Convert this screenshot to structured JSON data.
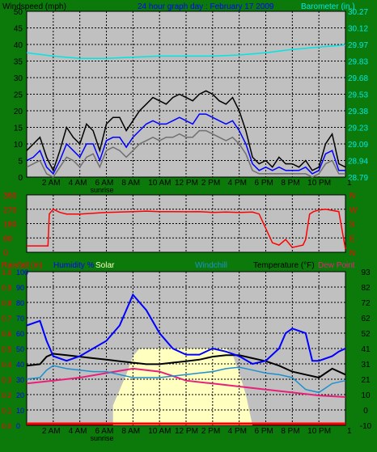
{
  "colors": {
    "background": "#0b7a0b",
    "plot": "#c0c0c0",
    "wind_gust": "#000000",
    "wind_avg": "#0000ff",
    "wind_low": "#707070",
    "barometer": "#00e5e5",
    "direction": "#ff0000",
    "rainfall": "#ff0000",
    "humidity": "#0000ff",
    "solar": "#ffffc0",
    "windchill": "#1e8fd0",
    "temperature": "#000000",
    "dewpoint": "#e8207a"
  },
  "chart_data": [
    {
      "type": "line",
      "title": "24 hour graph day : February 17 2009",
      "ylabel": "Windspeed (mph)",
      "y2label": "Barometer (in.)",
      "ylim": [
        0,
        50
      ],
      "yticks": [
        "0",
        "5",
        "10",
        "15",
        "20",
        "25",
        "30",
        "35",
        "40",
        "45",
        "50"
      ],
      "y2ticks": [
        "28.79",
        "28.94",
        "29.09",
        "29.23",
        "29.38",
        "29.53",
        "29.68",
        "29.83",
        "29.97",
        "30.12",
        "30.27"
      ],
      "xticks": [
        "2 AM",
        "4 AM",
        "6 AM",
        "8 AM",
        "10 AM",
        "12 PM",
        "2 PM",
        "4 PM",
        "6 PM",
        "8 PM",
        "10 PM",
        "1"
      ],
      "annotation": "sunrise",
      "grid": true,
      "series": [
        {
          "name": "gust",
          "x": [
            0,
            0.5,
            1,
            1.5,
            2,
            2.5,
            3,
            3.5,
            4,
            4.5,
            5,
            5.5,
            6,
            6.5,
            7,
            7.5,
            8,
            8.5,
            9,
            9.5,
            10,
            10.5,
            11,
            11.5,
            12,
            12.5,
            13,
            13.5,
            14,
            14.5,
            15,
            15.5,
            16,
            16.5,
            17,
            17.5,
            18,
            18.5,
            19,
            19.5,
            20,
            20.5,
            21,
            21.5,
            22,
            22.5,
            23,
            23.5,
            24
          ],
          "values": [
            8,
            10,
            12,
            6,
            2,
            8,
            15,
            12,
            10,
            16,
            14,
            8,
            16,
            18,
            18,
            14,
            17,
            20,
            22,
            24,
            23,
            22,
            24,
            25,
            24,
            23,
            25,
            26,
            25,
            23,
            22,
            24,
            20,
            14,
            6,
            4,
            5,
            3,
            6,
            4,
            4,
            3,
            5,
            2,
            3,
            10,
            13,
            4,
            3
          ]
        },
        {
          "name": "average",
          "x": [
            0,
            0.5,
            1,
            1.5,
            2,
            2.5,
            3,
            3.5,
            4,
            4.5,
            5,
            5.5,
            6,
            6.5,
            7,
            7.5,
            8,
            8.5,
            9,
            9.5,
            10,
            10.5,
            11,
            11.5,
            12,
            12.5,
            13,
            13.5,
            14,
            14.5,
            15,
            15.5,
            16,
            16.5,
            17,
            17.5,
            18,
            18.5,
            19,
            19.5,
            20,
            20.5,
            21,
            21.5,
            22,
            22.5,
            23,
            23.5,
            24
          ],
          "values": [
            5,
            6,
            8,
            3,
            1,
            5,
            10,
            8,
            6,
            10,
            10,
            5,
            11,
            12,
            12,
            9,
            12,
            14,
            16,
            17,
            16,
            16,
            17,
            18,
            17,
            16,
            19,
            19,
            18,
            17,
            16,
            17,
            14,
            10,
            4,
            2,
            3,
            2,
            3,
            2,
            2,
            2,
            3,
            1,
            2,
            7,
            8,
            2,
            2
          ]
        },
        {
          "name": "low",
          "x": [
            0,
            0.5,
            1,
            1.5,
            2,
            2.5,
            3,
            3.5,
            4,
            4.5,
            5,
            5.5,
            6,
            6.5,
            7,
            7.5,
            8,
            8.5,
            9,
            9.5,
            10,
            10.5,
            11,
            11.5,
            12,
            12.5,
            13,
            13.5,
            14,
            14.5,
            15,
            15.5,
            16,
            16.5,
            17,
            17.5,
            18,
            18.5,
            19,
            19.5,
            20,
            20.5,
            21,
            21.5,
            22,
            22.5,
            23,
            23.5,
            24
          ],
          "values": [
            3,
            4,
            5,
            1,
            0,
            3,
            6,
            5,
            3,
            6,
            7,
            3,
            8,
            9,
            8,
            6,
            8,
            10,
            11,
            12,
            11,
            12,
            12,
            13,
            12,
            12,
            14,
            14,
            13,
            12,
            11,
            12,
            10,
            7,
            2,
            1,
            1,
            1,
            1,
            1,
            1,
            1,
            1,
            0,
            1,
            4,
            5,
            1,
            1
          ]
        },
        {
          "name": "barometer",
          "x": [
            0,
            2,
            4,
            6,
            8,
            10,
            12,
            14,
            16,
            18,
            20,
            22,
            24
          ],
          "values": [
            29.9,
            29.87,
            29.85,
            29.85,
            29.86,
            29.87,
            29.87,
            29.87,
            29.88,
            29.9,
            29.93,
            29.95,
            29.97
          ]
        }
      ]
    },
    {
      "type": "line",
      "ylim": [
        0,
        360
      ],
      "yticks": [
        "0",
        "90",
        "180",
        "270",
        "360"
      ],
      "y2ticks": [
        "N",
        "E",
        "S",
        "W",
        "N"
      ],
      "grid": true,
      "series": [
        {
          "name": "direction",
          "x": [
            0,
            1.6,
            1.7,
            2,
            2.5,
            3,
            4,
            5,
            6,
            7,
            8,
            9,
            10,
            11,
            12,
            13,
            14,
            15,
            16,
            17,
            17.5,
            18.5,
            19,
            19.5,
            20,
            20.8,
            21,
            21.3,
            21.6,
            22,
            22.5,
            23.5,
            24
          ],
          "values": [
            40,
            40,
            240,
            270,
            250,
            240,
            240,
            245,
            250,
            252,
            255,
            258,
            255,
            255,
            254,
            255,
            250,
            252,
            250,
            252,
            240,
            60,
            45,
            80,
            30,
            45,
            80,
            240,
            255,
            265,
            270,
            255,
            20
          ]
        }
      ]
    },
    {
      "type": "line",
      "labels": [
        "Rainfall (in)",
        "Humidity %",
        "Solar",
        "Windchill",
        "Temperature (°F)",
        "Dew Point"
      ],
      "ylim": [
        -10,
        93
      ],
      "yticks_left": [
        "0.0",
        "0.1",
        "0.2",
        "0.3",
        "0.4",
        "0.5",
        "0.6",
        "0.7",
        "0.8",
        "0.9",
        "1.0"
      ],
      "yticks_humidity": [
        "0",
        "10",
        "20",
        "30",
        "40",
        "50",
        "60",
        "70",
        "80",
        "90",
        "100"
      ],
      "yticks_right": [
        "-10",
        "0",
        "10",
        "21",
        "31",
        "41",
        "52",
        "62",
        "72",
        "82",
        "93"
      ],
      "xticks": [
        "2 AM",
        "4 AM",
        "6 AM",
        "8 AM",
        "10 AM",
        "12 PM",
        "2 PM",
        "4 PM",
        "6 PM",
        "8 PM",
        "10 PM",
        "1"
      ],
      "annotation": "sunrise",
      "grid": true,
      "series": [
        {
          "name": "solar",
          "x": [
            6.5,
            7,
            7.5,
            8,
            8.5,
            9,
            10,
            11,
            12,
            13,
            14,
            15,
            15.5,
            16,
            16.5,
            17
          ],
          "values": [
            0.13,
            0.23,
            0.33,
            0.45,
            0.5,
            0.5,
            0.5,
            0.5,
            0.5,
            0.5,
            0.5,
            0.5,
            0.46,
            0.34,
            0.2,
            0
          ]
        },
        {
          "name": "humidity",
          "x": [
            0,
            1,
            1.5,
            2,
            3,
            4,
            5,
            6,
            7,
            7.5,
            8,
            8.5,
            9,
            10,
            11,
            12,
            13,
            14,
            15,
            16,
            17,
            18,
            19,
            19.5,
            20,
            21,
            21.5,
            22,
            23,
            23.5,
            24
          ],
          "values": [
            65,
            68,
            55,
            45,
            42,
            45,
            50,
            55,
            65,
            75,
            85,
            80,
            75,
            60,
            50,
            46,
            46,
            50,
            48,
            45,
            40,
            42,
            50,
            60,
            63,
            60,
            42,
            42,
            45,
            48,
            50
          ]
        },
        {
          "name": "temperature",
          "x": [
            0,
            1,
            1.5,
            2,
            3,
            4,
            5,
            6,
            7,
            8,
            9,
            10,
            11,
            12,
            13,
            14,
            15,
            16,
            17,
            18,
            19,
            20,
            21,
            22,
            23,
            24
          ],
          "values": [
            30,
            31,
            36,
            38,
            37,
            36,
            35,
            34,
            33,
            32,
            31,
            31,
            32,
            33,
            34,
            36,
            37,
            37,
            35,
            33,
            30,
            26,
            24,
            22,
            28,
            24
          ]
        },
        {
          "name": "windchill",
          "x": [
            0,
            1,
            1.5,
            2,
            3,
            4,
            5,
            6,
            7,
            8,
            9,
            10,
            11,
            12,
            13,
            14,
            15,
            16,
            17,
            18,
            19,
            20,
            21,
            22,
            23,
            24
          ],
          "values": [
            21,
            22,
            27,
            30,
            28,
            27,
            26,
            26,
            24,
            22,
            22,
            22,
            23,
            24,
            25,
            26,
            28,
            29,
            27,
            25,
            24,
            22,
            14,
            12,
            18,
            20
          ]
        },
        {
          "name": "dewpoint",
          "x": [
            0,
            2,
            4,
            6,
            8,
            10,
            11,
            12,
            14,
            16,
            18,
            20,
            22,
            24
          ],
          "values": [
            18,
            20,
            22,
            25,
            28,
            26,
            23,
            20,
            18,
            16,
            14,
            12,
            10,
            9
          ]
        },
        {
          "name": "rainfall",
          "x": [
            0,
            24
          ],
          "values": [
            0,
            0
          ]
        }
      ]
    }
  ]
}
